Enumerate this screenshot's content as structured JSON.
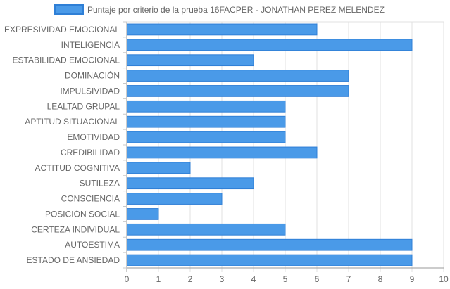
{
  "chart_data": {
    "type": "bar",
    "orientation": "horizontal",
    "title": "",
    "xlabel": "",
    "ylabel": "",
    "xlim": [
      0,
      10
    ],
    "x_ticks": [
      "0",
      "1",
      "2",
      "3",
      "4",
      "5",
      "6",
      "7",
      "8",
      "9",
      "10"
    ],
    "grid": true,
    "legend_position": "top",
    "categories": [
      "EXPRESIVIDAD EMOCIONAL",
      "INTELIGENCIA",
      "ESTABILIDAD EMOCIONAL",
      "DOMINACIÓN",
      "IMPULSIVIDAD",
      "LEALTAD GRUPAL",
      "APTITUD SITUACIONAL",
      "EMOTIVIDAD",
      "CREDIBILIDAD",
      "ACTITUD COGNITIVA",
      "SUTILEZA",
      "CONSCIENCIA",
      "POSICIÓN SOCIAL",
      "CERTEZA INDIVIDUAL",
      "AUTOESTIMA",
      "ESTADO DE ANSIEDAD"
    ],
    "series": [
      {
        "name": "Puntaje por criterio de la prueba 16FACPER - JONATHAN PEREZ MELENDEZ",
        "values": [
          6,
          9,
          4,
          7,
          7,
          5,
          5,
          5,
          6,
          2,
          4,
          3,
          1,
          5,
          9,
          9
        ],
        "color": "#4a9ae8",
        "border_color": "#2f7fd6"
      }
    ]
  }
}
